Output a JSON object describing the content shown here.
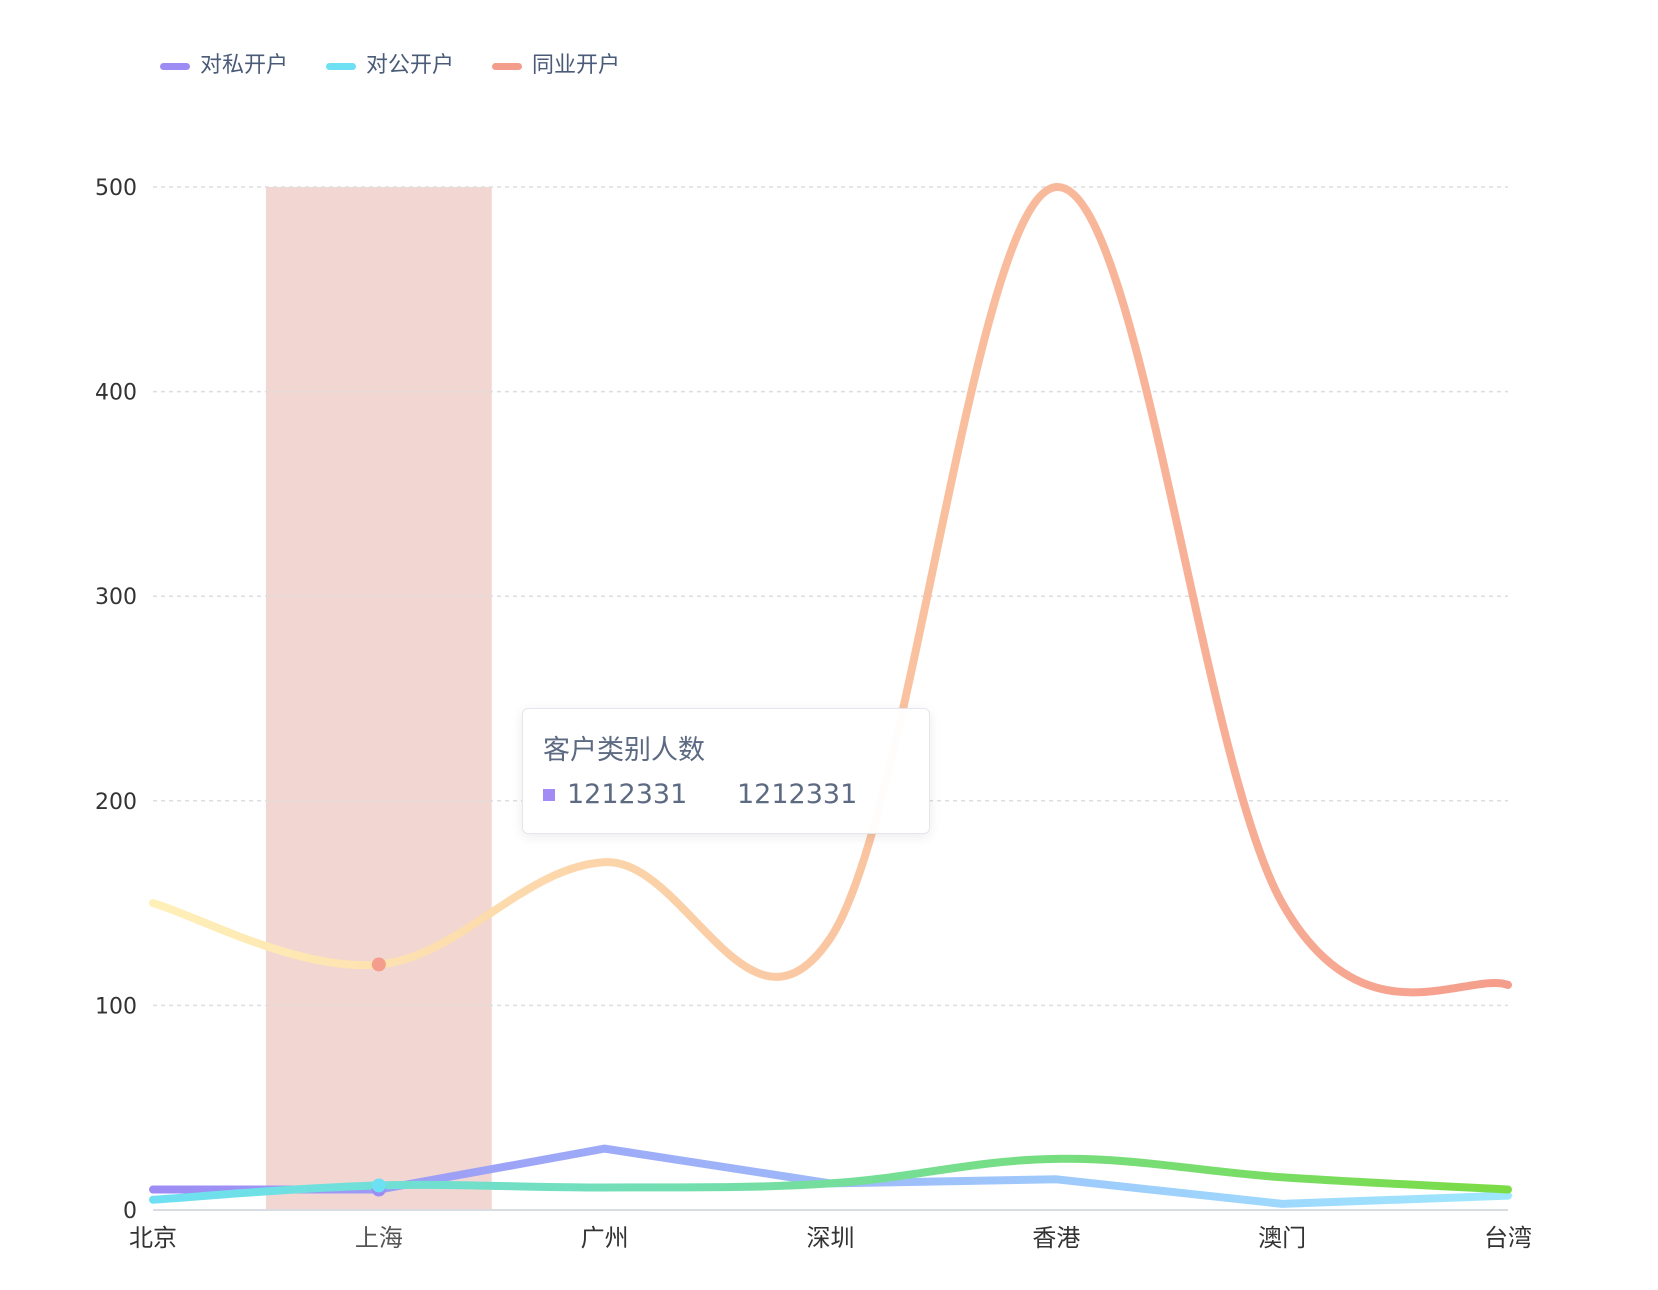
{
  "chart_data": {
    "type": "line",
    "categories": [
      "北京",
      "上海",
      "广州",
      "深圳",
      "香港",
      "澳门",
      "台湾"
    ],
    "series": [
      {
        "name": "对私开户",
        "values": [
          10,
          10,
          30,
          13,
          15,
          3,
          7
        ]
      },
      {
        "name": "对公开户",
        "values": [
          5,
          12,
          11,
          13,
          25,
          16,
          10
        ]
      },
      {
        "name": "同业开户",
        "values": [
          150,
          120,
          170,
          133,
          500,
          150,
          110
        ]
      }
    ],
    "ylim": [
      0,
      500
    ],
    "yticks": [
      0,
      100,
      200,
      300,
      400,
      500
    ],
    "grid": "dashed horizontal",
    "legend_position": "top-left",
    "highlight_category": "上海",
    "tooltip": {
      "title": "客户类别人数",
      "row_name": "1212331",
      "row_value": "1212331",
      "marker_color": "#a28bf2"
    },
    "colors": {
      "对私开户": "#9d8cf4",
      "对公开户": "#6ee0f3",
      "同业开户": "#f59d8c",
      "highlight_band": "#ecc5bf",
      "axis": "#d9dde3",
      "grid": "#dddddd",
      "tick_text": "#333333"
    },
    "gradients": {
      "对私开户": [
        "#9d8cf4",
        "#9ee8ff"
      ],
      "对公开户": [
        "#6ee0f3",
        "#7bdc45"
      ],
      "同业开户": [
        "#fff0b8",
        "#f59d8c"
      ]
    }
  }
}
